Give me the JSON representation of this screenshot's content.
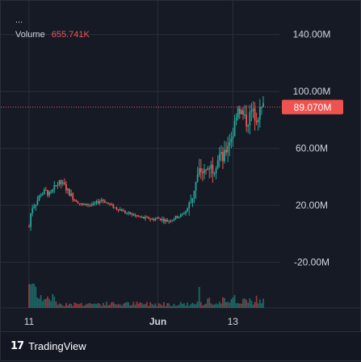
{
  "legend": {
    "dots": "...",
    "volume_label": "Volume",
    "volume_value": "655.741K"
  },
  "price_badge": "89.070M",
  "branding": "TradingView",
  "colors": {
    "up": "#26a69a",
    "down": "#ef5350",
    "price_line": "#ef5350",
    "grid": "#2a2e39",
    "text": "#d1d4dc"
  },
  "chart_data": {
    "type": "candlestick",
    "y_ticks": [
      "140.00M",
      "100.00M",
      "60.00M",
      "20.00M",
      "-20.00M"
    ],
    "y_tick_values": [
      140,
      100,
      60,
      20,
      -20
    ],
    "y_unit": "M",
    "ylim": [
      -52,
      158
    ],
    "x_ticks": [
      "11",
      "Jun",
      "13"
    ],
    "x_tick_positions": [
      0.0,
      0.55,
      0.87
    ],
    "current_price": 89.07,
    "legend_placement": "top-left",
    "grid": true,
    "price_path": [
      [
        0.0,
        5
      ],
      [
        0.01,
        18
      ],
      [
        0.03,
        22
      ],
      [
        0.05,
        28
      ],
      [
        0.07,
        30
      ],
      [
        0.09,
        27
      ],
      [
        0.11,
        33
      ],
      [
        0.13,
        36
      ],
      [
        0.15,
        34
      ],
      [
        0.17,
        29
      ],
      [
        0.19,
        25
      ],
      [
        0.21,
        22
      ],
      [
        0.23,
        20
      ],
      [
        0.25,
        21
      ],
      [
        0.27,
        20
      ],
      [
        0.29,
        22
      ],
      [
        0.31,
        24
      ],
      [
        0.33,
        22
      ],
      [
        0.35,
        20
      ],
      [
        0.37,
        18
      ],
      [
        0.39,
        17
      ],
      [
        0.41,
        15
      ],
      [
        0.43,
        14
      ],
      [
        0.45,
        13
      ],
      [
        0.47,
        12
      ],
      [
        0.49,
        11
      ],
      [
        0.51,
        11
      ],
      [
        0.53,
        10
      ],
      [
        0.55,
        11
      ],
      [
        0.57,
        10
      ],
      [
        0.59,
        9
      ],
      [
        0.61,
        10
      ],
      [
        0.63,
        12
      ],
      [
        0.65,
        13
      ],
      [
        0.67,
        16
      ],
      [
        0.69,
        22
      ],
      [
        0.71,
        35
      ],
      [
        0.73,
        45
      ],
      [
        0.75,
        42
      ],
      [
        0.77,
        48
      ],
      [
        0.79,
        46
      ],
      [
        0.81,
        56
      ],
      [
        0.83,
        52
      ],
      [
        0.85,
        64
      ],
      [
        0.87,
        70
      ],
      [
        0.89,
        90
      ],
      [
        0.91,
        84
      ],
      [
        0.93,
        78
      ],
      [
        0.95,
        86
      ],
      [
        0.97,
        82
      ],
      [
        1.0,
        89
      ]
    ]
  }
}
